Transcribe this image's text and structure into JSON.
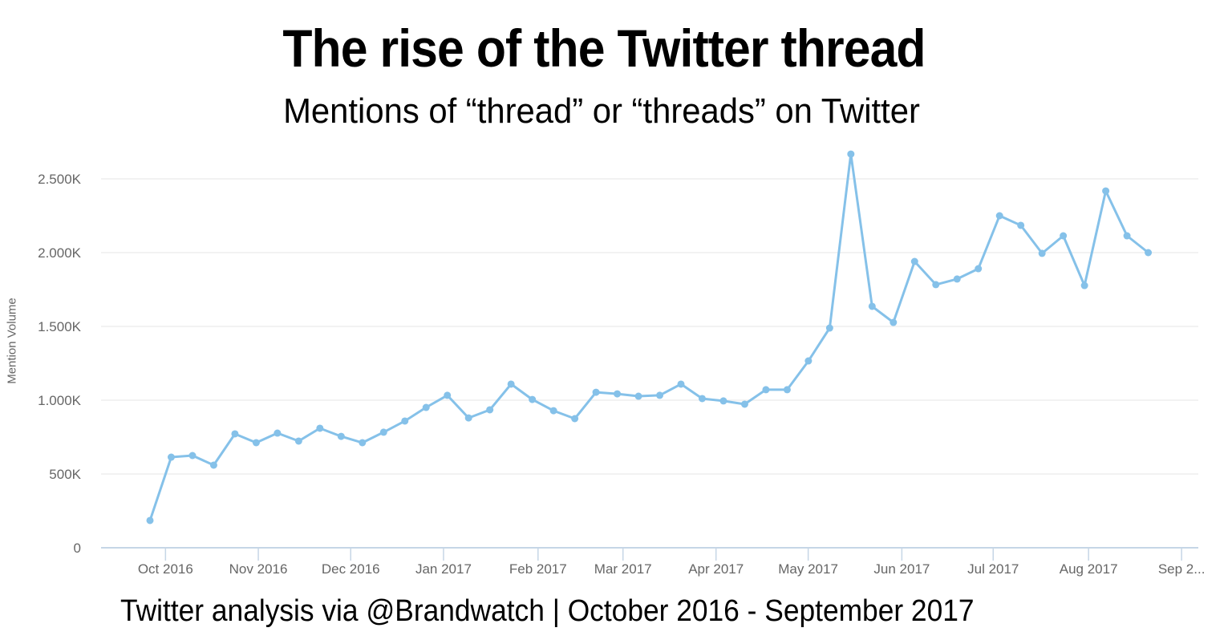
{
  "header": {
    "title": "The rise of the Twitter thread",
    "subtitle": "Mentions of “thread” or “threads” on Twitter"
  },
  "footer": {
    "source": "Twitter analysis via @Brandwatch | October 2016 - September 2017"
  },
  "colors": {
    "line": "#85C1E9",
    "grid": "#EEEEEE",
    "axis": "#C6D6E6",
    "tick_text": "#666666"
  },
  "chart_data": {
    "type": "line",
    "title": "The rise of the Twitter thread",
    "subtitle": "Mentions of “thread” or “threads” on Twitter",
    "xlabel": "",
    "ylabel": "Mention Volume",
    "ylim": [
      0,
      2600000
    ],
    "grid": true,
    "legend": "none",
    "y_ticks": [
      {
        "value": 0,
        "label": "0"
      },
      {
        "value": 500000,
        "label": "500K"
      },
      {
        "value": 1000000,
        "label": "1.000K"
      },
      {
        "value": 1500000,
        "label": "1.500K"
      },
      {
        "value": 2000000,
        "label": "2.000K"
      },
      {
        "value": 2500000,
        "label": "2.500K"
      }
    ],
    "x_ticks": [
      "Oct 2016",
      "Nov 2016",
      "Dec 2016",
      "Jan 2017",
      "Feb 2017",
      "Mar 2017",
      "Apr 2017",
      "May 2017",
      "Jun 2017",
      "Jul 2017",
      "Aug 2017",
      "Sep 2..."
    ],
    "x_tick_positions_week": [
      0.73,
      5.1,
      9.45,
      13.82,
      18.27,
      22.27,
      26.65,
      30.99,
      35.4,
      39.7,
      44.19,
      48.57
    ],
    "x_interval": "weekly",
    "series": [
      {
        "name": "Mention Volume",
        "values": [
          185000,
          614000,
          625000,
          560000,
          772000,
          712000,
          777000,
          723000,
          810000,
          755000,
          712000,
          783000,
          859000,
          951000,
          1033000,
          880000,
          935000,
          1109000,
          1005000,
          929000,
          875000,
          1054000,
          1043000,
          1027000,
          1033000,
          1109000,
          1011000,
          995000,
          973000,
          1071000,
          1071000,
          1266000,
          1489000,
          2668000,
          1636000,
          1527000,
          1940000,
          1783000,
          1821000,
          1891000,
          2250000,
          2185000,
          1995000,
          2114000,
          1777000,
          2418000,
          2114000,
          2000000
        ]
      }
    ]
  }
}
